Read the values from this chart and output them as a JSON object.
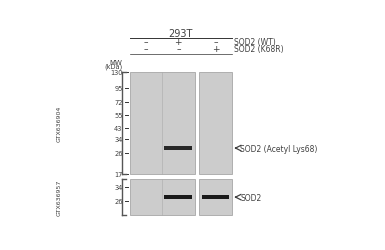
{
  "white_bg": "#ffffff",
  "lane_bg": "#cccccc",
  "text_color": "#404040",
  "tick_color": "#333333",
  "bracket_color": "#555555",
  "title": "293T",
  "row1_labels": [
    "–",
    "+",
    "–"
  ],
  "row2_labels": [
    "–",
    "–",
    "+"
  ],
  "row1_suffix": "SOD2 (WT)",
  "row2_suffix": "SOD2 (K68R)",
  "antibody_upper": "GTX636904",
  "antibody_lower": "GTX636957",
  "mw_ticks_upper": [
    130,
    95,
    72,
    55,
    43,
    34,
    26,
    17
  ],
  "mw_ticks_lower": [
    34,
    26
  ],
  "band_label_upper": "SOD2 (Acetyl Lys68)",
  "band_label_lower": "SOD2",
  "band_color_upper": "#282828",
  "band_color_lower": "#1a1a1a"
}
